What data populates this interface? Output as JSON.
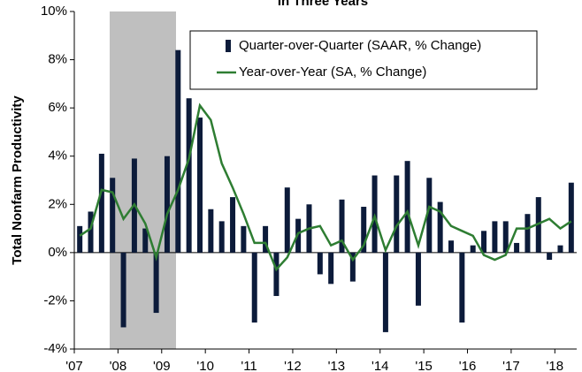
{
  "chart_data": {
    "type": "bar_line",
    "title": "In Three Years",
    "y_label": "Total Nonfarm Productivity",
    "categories": [
      "'07",
      null,
      null,
      null,
      "'08",
      null,
      null,
      null,
      "'09",
      null,
      null,
      null,
      "'10",
      null,
      null,
      null,
      "'11",
      null,
      null,
      null,
      "'12",
      null,
      null,
      null,
      "'13",
      null,
      null,
      null,
      "'14",
      null,
      null,
      null,
      "'15",
      null,
      null,
      null,
      "'16",
      null,
      null,
      null,
      "'17",
      null,
      null,
      null,
      "'18",
      null
    ],
    "series": [
      {
        "name": "Quarter-over-Quarter (SAAR, % Change)",
        "color": "#0c1b3a",
        "kind": "bar",
        "values": [
          1.1,
          1.7,
          4.1,
          3.1,
          -3.1,
          3.9,
          1.0,
          -2.5,
          4.0,
          8.4,
          6.4,
          5.6,
          1.8,
          1.3,
          2.3,
          1.1,
          -2.9,
          1.1,
          -1.8,
          2.7,
          1.4,
          2.0,
          -0.9,
          -1.3,
          2.2,
          -1.2,
          1.9,
          3.2,
          -3.3,
          3.2,
          3.8,
          -2.2,
          3.1,
          2.1,
          0.5,
          -2.9,
          0.3,
          0.9,
          1.3,
          1.3,
          0.4,
          1.6,
          2.3,
          -0.3,
          0.3,
          2.9
        ]
      },
      {
        "name": "Year-over-Year (SA, % Change)",
        "color": "#2e7d32",
        "kind": "line",
        "values": [
          0.7,
          1.0,
          2.6,
          2.5,
          1.4,
          2.0,
          1.2,
          -0.2,
          1.6,
          2.6,
          3.9,
          6.1,
          5.5,
          3.7,
          2.7,
          1.6,
          0.4,
          0.4,
          -0.7,
          -0.2,
          0.8,
          1.0,
          1.1,
          0.3,
          0.5,
          -0.3,
          0.3,
          1.5,
          0.1,
          1.1,
          1.7,
          0.3,
          1.9,
          1.7,
          1.1,
          0.9,
          0.7,
          -0.1,
          -0.3,
          -0.1,
          1.0,
          1.0,
          1.2,
          1.4,
          1.0,
          1.3
        ]
      }
    ],
    "ylim": [
      -4,
      10
    ],
    "yticks": [
      {
        "value": -4,
        "label": "-4%"
      },
      {
        "value": -2,
        "label": "-2%"
      },
      {
        "value": 0,
        "label": "0%"
      },
      {
        "value": 2,
        "label": "2%"
      },
      {
        "value": 4,
        "label": "4%"
      },
      {
        "value": 6,
        "label": "6%"
      },
      {
        "value": 8,
        "label": "8%"
      },
      {
        "value": 10,
        "label": "10%"
      }
    ],
    "legend": "upper right",
    "grid": false
  }
}
